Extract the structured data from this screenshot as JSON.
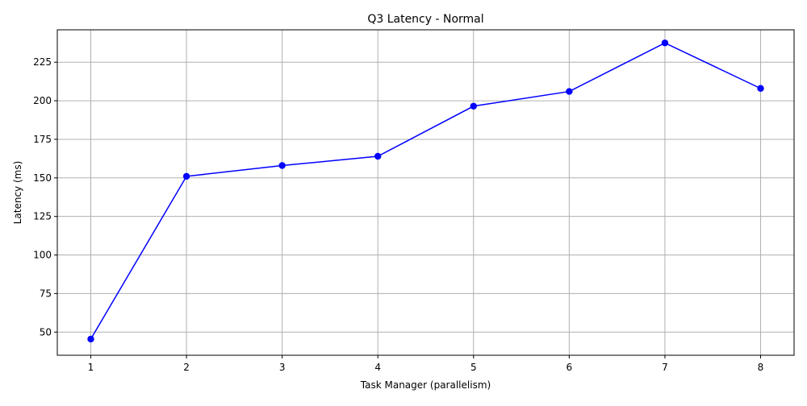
{
  "chart_data": {
    "type": "line",
    "title": "Q3 Latency - Normal",
    "xlabel": "Task Manager (parallelism)",
    "ylabel": "Latency (ms)",
    "x": [
      1,
      2,
      3,
      4,
      5,
      6,
      7,
      8
    ],
    "series": [
      {
        "values": [
          45.5,
          151,
          158,
          164,
          196.5,
          206,
          237.5,
          208
        ]
      }
    ],
    "xticks": [
      "1",
      "2",
      "3",
      "4",
      "5",
      "6",
      "7",
      "8"
    ],
    "yticks": [
      "50",
      "75",
      "100",
      "125",
      "150",
      "175",
      "200",
      "225"
    ],
    "xlim": [
      0.65,
      8.35
    ],
    "ylim": [
      35,
      246
    ],
    "grid": true,
    "markers": true,
    "line_color": "#0000ff",
    "grid_color": "#b0b0b0"
  }
}
